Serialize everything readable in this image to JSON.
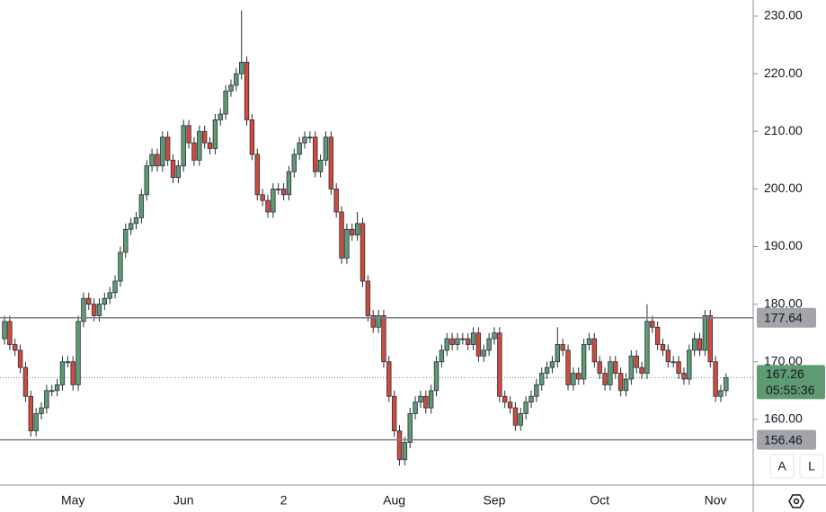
{
  "chart_data": {
    "type": "candlestick",
    "categories": [
      null,
      null,
      null,
      null,
      null,
      null,
      null,
      null,
      null,
      null,
      null,
      null,
      null,
      "May",
      null,
      null,
      null,
      null,
      null,
      null,
      null,
      null,
      null,
      null,
      null,
      null,
      null,
      null,
      null,
      null,
      null,
      null,
      null,
      null,
      "Jun",
      null,
      null,
      null,
      null,
      null,
      null,
      null,
      null,
      null,
      null,
      null,
      null,
      null,
      null,
      null,
      null,
      null,
      null,
      "2",
      null,
      null,
      null,
      null,
      null,
      null,
      null,
      null,
      null,
      null,
      null,
      null,
      null,
      null,
      null,
      null,
      null,
      null,
      null,
      null,
      "Aug",
      null,
      null,
      null,
      null,
      null,
      null,
      null,
      null,
      null,
      null,
      null,
      null,
      null,
      null,
      null,
      null,
      null,
      null,
      "Sep",
      null,
      null,
      null,
      null,
      null,
      null,
      null,
      null,
      null,
      null,
      null,
      null,
      null,
      null,
      null,
      null,
      null,
      null,
      null,
      "Oct",
      null,
      null,
      null,
      null,
      null,
      null,
      null,
      null,
      null,
      null,
      null,
      null,
      null,
      null,
      null,
      null,
      null,
      null,
      null,
      null,
      null,
      "Nov",
      null,
      null
    ],
    "open": [
      174,
      177,
      173,
      172,
      169,
      164,
      158,
      161,
      162,
      165,
      165,
      166,
      170,
      170,
      166,
      177,
      181,
      180,
      178,
      180,
      181,
      182,
      184,
      189,
      193,
      194,
      195,
      199,
      204,
      206,
      204,
      209,
      205,
      202,
      204,
      211,
      208,
      205,
      210,
      208,
      207,
      212,
      213,
      217,
      218,
      220,
      222,
      212,
      206,
      199,
      198,
      196,
      200,
      200,
      199,
      203,
      206,
      208,
      209,
      209,
      203,
      205,
      209,
      200,
      196,
      188,
      193,
      192,
      194,
      184,
      178,
      176,
      178,
      170,
      164,
      158,
      153,
      156,
      161,
      163,
      164,
      162,
      165,
      170,
      172,
      174,
      173,
      174,
      174,
      173,
      175,
      171,
      172,
      174,
      175,
      164,
      163,
      162,
      159,
      161,
      163,
      164,
      166,
      168,
      169,
      170,
      173,
      172,
      166,
      168,
      167,
      173,
      174,
      170,
      168,
      166,
      170,
      168,
      165,
      167,
      171,
      169,
      168,
      177,
      176,
      173,
      172,
      170,
      170,
      168,
      167,
      172,
      174,
      172,
      178,
      170,
      164,
      165
    ],
    "high": [
      178,
      178,
      174,
      173,
      170,
      165,
      162,
      163,
      166,
      166,
      167,
      171,
      171,
      171,
      178,
      182,
      182,
      181,
      181,
      182,
      183,
      185,
      190,
      194,
      195,
      196,
      200,
      205,
      207,
      207,
      210,
      210,
      206,
      205,
      212,
      212,
      209,
      211,
      211,
      209,
      213,
      214,
      218,
      219,
      221,
      231,
      223,
      213,
      207,
      200,
      199,
      201,
      201,
      201,
      204,
      207,
      209,
      210,
      210,
      210,
      206,
      210,
      210,
      201,
      197,
      194,
      194,
      196,
      195,
      185,
      179,
      179,
      179,
      171,
      165,
      159,
      157,
      162,
      164,
      165,
      165,
      166,
      171,
      173,
      175,
      175,
      175,
      175,
      175,
      176,
      176,
      173,
      175,
      176,
      176,
      165,
      164,
      163,
      162,
      164,
      165,
      167,
      169,
      170,
      171,
      176,
      174,
      173,
      169,
      169,
      174,
      175,
      175,
      171,
      169,
      171,
      171,
      169,
      168,
      172,
      172,
      170,
      180,
      178,
      177,
      174,
      173,
      171,
      171,
      169,
      173,
      175,
      175,
      179,
      179,
      171,
      166,
      168
    ],
    "low": [
      173,
      172,
      171,
      168,
      163,
      157,
      157,
      160,
      161,
      164,
      164,
      165,
      169,
      165,
      165,
      176,
      179,
      177,
      177,
      179,
      180,
      181,
      183,
      188,
      192,
      193,
      194,
      198,
      203,
      203,
      203,
      204,
      201,
      201,
      203,
      207,
      204,
      204,
      207,
      206,
      206,
      211,
      212,
      216,
      217,
      219,
      211,
      205,
      198,
      197,
      195,
      195,
      199,
      198,
      198,
      202,
      205,
      207,
      208,
      202,
      202,
      204,
      199,
      195,
      187,
      187,
      191,
      191,
      183,
      177,
      175,
      175,
      169,
      163,
      157,
      152,
      152,
      155,
      160,
      162,
      161,
      161,
      164,
      169,
      171,
      172,
      172,
      173,
      172,
      172,
      170,
      170,
      171,
      173,
      163,
      162,
      161,
      158,
      158,
      160,
      162,
      163,
      165,
      167,
      168,
      169,
      171,
      165,
      165,
      166,
      166,
      172,
      169,
      167,
      165,
      165,
      167,
      164,
      164,
      166,
      168,
      167,
      167,
      175,
      172,
      171,
      169,
      169,
      167,
      166,
      166,
      171,
      171,
      171,
      169,
      163,
      163,
      164
    ],
    "close": [
      177,
      173,
      172,
      169,
      164,
      158,
      161,
      162,
      165,
      165,
      166,
      170,
      170,
      166,
      177,
      181,
      180,
      178,
      180,
      181,
      182,
      184,
      189,
      193,
      194,
      195,
      199,
      204,
      206,
      204,
      209,
      205,
      202,
      204,
      211,
      208,
      205,
      210,
      208,
      207,
      212,
      213,
      217,
      218,
      220,
      222,
      212,
      206,
      199,
      198,
      196,
      200,
      200,
      199,
      203,
      206,
      208,
      209,
      209,
      203,
      205,
      209,
      200,
      196,
      188,
      193,
      192,
      194,
      184,
      178,
      176,
      178,
      170,
      164,
      158,
      153,
      156,
      161,
      163,
      164,
      162,
      165,
      170,
      172,
      174,
      173,
      174,
      174,
      173,
      175,
      171,
      172,
      174,
      175,
      164,
      163,
      162,
      159,
      161,
      163,
      164,
      166,
      168,
      169,
      170,
      173,
      172,
      166,
      168,
      167,
      173,
      174,
      170,
      168,
      166,
      170,
      168,
      165,
      167,
      171,
      169,
      168,
      177,
      176,
      173,
      172,
      170,
      170,
      168,
      167,
      172,
      174,
      172,
      178,
      170,
      164,
      165,
      167.26
    ],
    "up_color": "#5e9b73",
    "down_color": "#cf4b3b",
    "ylim": [
      148.6,
      232.8
    ],
    "yticks": [
      {
        "value": 160,
        "label": "160.00"
      },
      {
        "value": 170,
        "label": "170.00"
      },
      {
        "value": 180,
        "label": "180.00"
      },
      {
        "value": 190,
        "label": "190.00"
      },
      {
        "value": 200,
        "label": "200.00"
      },
      {
        "value": 210,
        "label": "210.00"
      },
      {
        "value": 220,
        "label": "220.00"
      },
      {
        "value": 230,
        "label": "230.00"
      }
    ],
    "price_lines": [
      {
        "value": 177.64,
        "label": "177.64"
      },
      {
        "value": 156.46,
        "label": "156.46"
      }
    ],
    "last_price": {
      "value": 167.26,
      "label": "167.26"
    },
    "countdown": "05:55:36",
    "buttons": [
      "A",
      "L"
    ]
  }
}
